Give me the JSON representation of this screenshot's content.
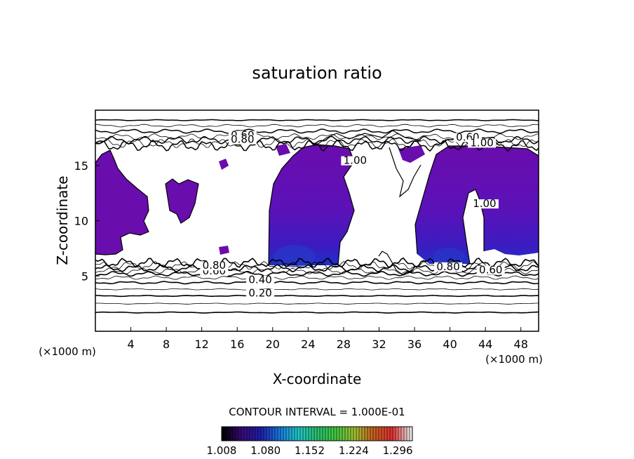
{
  "chart_data": {
    "type": "heatmap",
    "title": "saturation ratio",
    "xlabel": "X-coordinate",
    "ylabel": "Z-coordinate",
    "x_unit": "(×1000 m)",
    "z_unit": "(×1000 m)",
    "xlim": [
      0,
      50
    ],
    "ylim": [
      0,
      20
    ],
    "x_ticks": [
      4,
      8,
      12,
      16,
      20,
      24,
      28,
      32,
      36,
      40,
      44,
      48
    ],
    "y_ticks": [
      5,
      10,
      15
    ],
    "contour_interval_text": "CONTOUR INTERVAL = 1.000E-01",
    "contour_levels": [
      {
        "label": "0.20",
        "z": 3.2,
        "label_x": 18.6
      },
      {
        "label": "0.40",
        "z": 4.4,
        "label_x": 18.6
      },
      {
        "label": "0.60",
        "z": 5.2,
        "label_x": 13.4
      },
      {
        "label": "0.80",
        "z": 5.7,
        "label_x": 13.4
      }
    ],
    "upper_contour_labels": [
      {
        "label": "0.60",
        "x": 16.6,
        "z": 17.5
      },
      {
        "label": "0.80",
        "x": 16.6,
        "z": 17.1
      },
      {
        "label": "0.60",
        "x": 42.0,
        "z": 17.3
      },
      {
        "label": "1.00",
        "x": 43.6,
        "z": 16.8
      },
      {
        "label": "0.80",
        "x": 39.8,
        "z": 5.6
      },
      {
        "label": "0.60",
        "x": 44.6,
        "z": 5.3
      },
      {
        "label": "1.00",
        "x": 29.3,
        "z": 15.2
      },
      {
        "label": "1.00",
        "x": 43.9,
        "z": 11.3
      }
    ],
    "colorbar": {
      "min": 1.008,
      "max": 1.32,
      "tick_labels": [
        "1.008",
        "1.080",
        "1.152",
        "1.224",
        "1.296"
      ],
      "colors": [
        "#000000",
        "#3a0a7a",
        "#1e1eaa",
        "#1a78e0",
        "#20c8c8",
        "#28c070",
        "#40c840",
        "#a0c030",
        "#c86020",
        "#e03030",
        "#e8e8e8"
      ]
    },
    "supersaturated_regions": [
      {
        "name": "left",
        "color": "#6a0dad"
      },
      {
        "name": "center",
        "color": "#6a0dad"
      },
      {
        "name": "right",
        "color": "#6a0dad"
      }
    ]
  }
}
